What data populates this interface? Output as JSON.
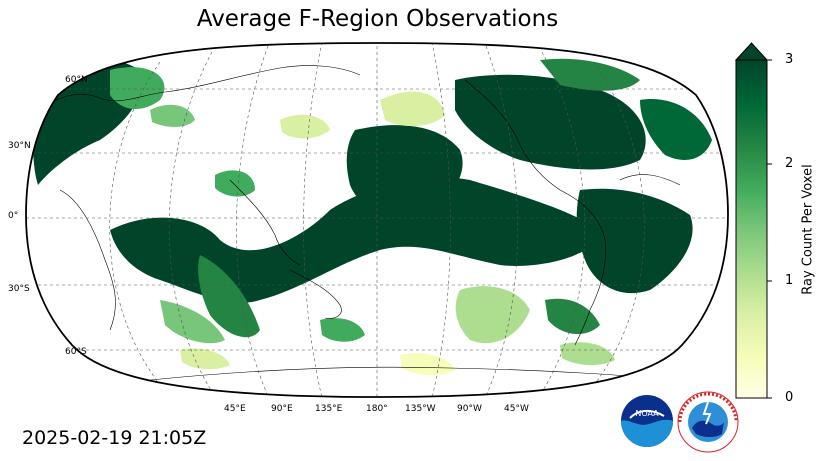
{
  "title": "Average F-Region Observations",
  "timestamp": "2025-02-19 21:05Z",
  "lat_labels": [
    "60°N",
    "30°N",
    "0°",
    "30°S",
    "60°S"
  ],
  "lon_labels": [
    "45°E",
    "90°E",
    "135°E",
    "180°",
    "135°W",
    "90°W",
    "45°W"
  ],
  "colorbar": {
    "label": "Ray Count Per Voxel",
    "ticks": [
      "0",
      "1",
      "2",
      "3"
    ],
    "range": [
      0,
      3
    ],
    "extend": "max",
    "colors": [
      "#ffffe5",
      "#f7fcb9",
      "#d9f0a3",
      "#addd8e",
      "#78c679",
      "#41ab5d",
      "#238443",
      "#006837",
      "#004529"
    ]
  },
  "logos": {
    "noaa": "NOAA",
    "nws": "NATIONAL WEATHER SERVICE"
  },
  "map_meta": {
    "projection": "robinson",
    "central_longitude": "180°",
    "gridlines": "dashed",
    "coastlines": true
  }
}
